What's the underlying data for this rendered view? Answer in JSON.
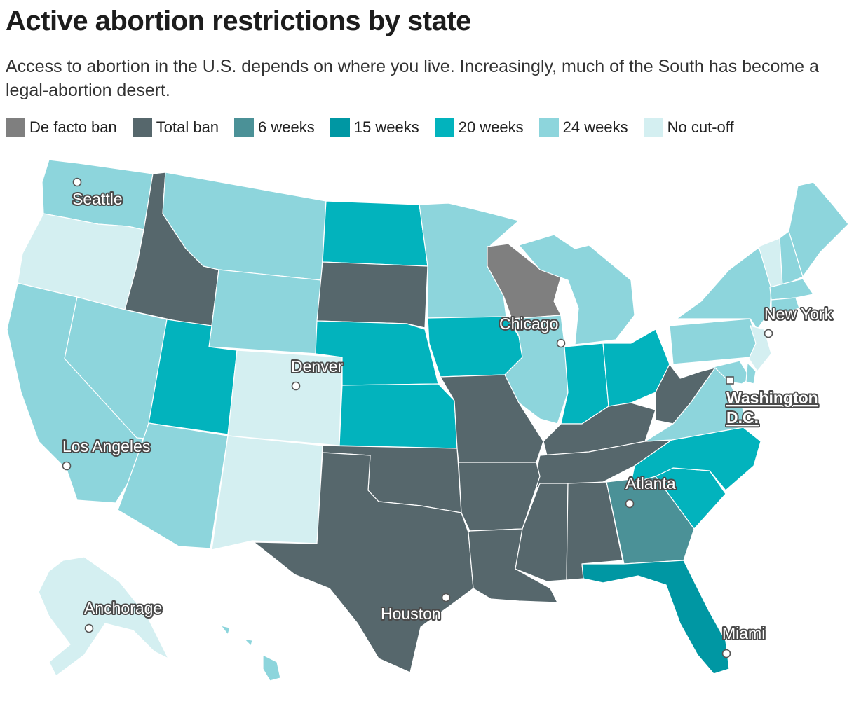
{
  "title": "Active abortion restrictions by state",
  "subtitle": "Access to abortion in the U.S. depends on where you live. Increasingly, much of the South has become a legal-abortion desert.",
  "legend": [
    {
      "label": "De facto ban",
      "color": "#7f7f7f"
    },
    {
      "label": "Total ban",
      "color": "#56676c"
    },
    {
      "label": "6 weeks",
      "color": "#4b9197"
    },
    {
      "label": "15 weeks",
      "color": "#0097a3"
    },
    {
      "label": "20 weeks",
      "color": "#02b3bd"
    },
    {
      "label": "24 weeks",
      "color": "#8dd5dc"
    },
    {
      "label": "No cut-off",
      "color": "#d4eff1"
    }
  ],
  "cities": {
    "seattle": "Seattle",
    "chicago": "Chicago",
    "new_york": "New York",
    "denver": "Denver",
    "washington": "Washington D.C.",
    "los_angeles": "Los Angeles",
    "atlanta": "Atlanta",
    "anchorage": "Anchorage",
    "houston": "Houston",
    "miami": "Miami"
  }
}
